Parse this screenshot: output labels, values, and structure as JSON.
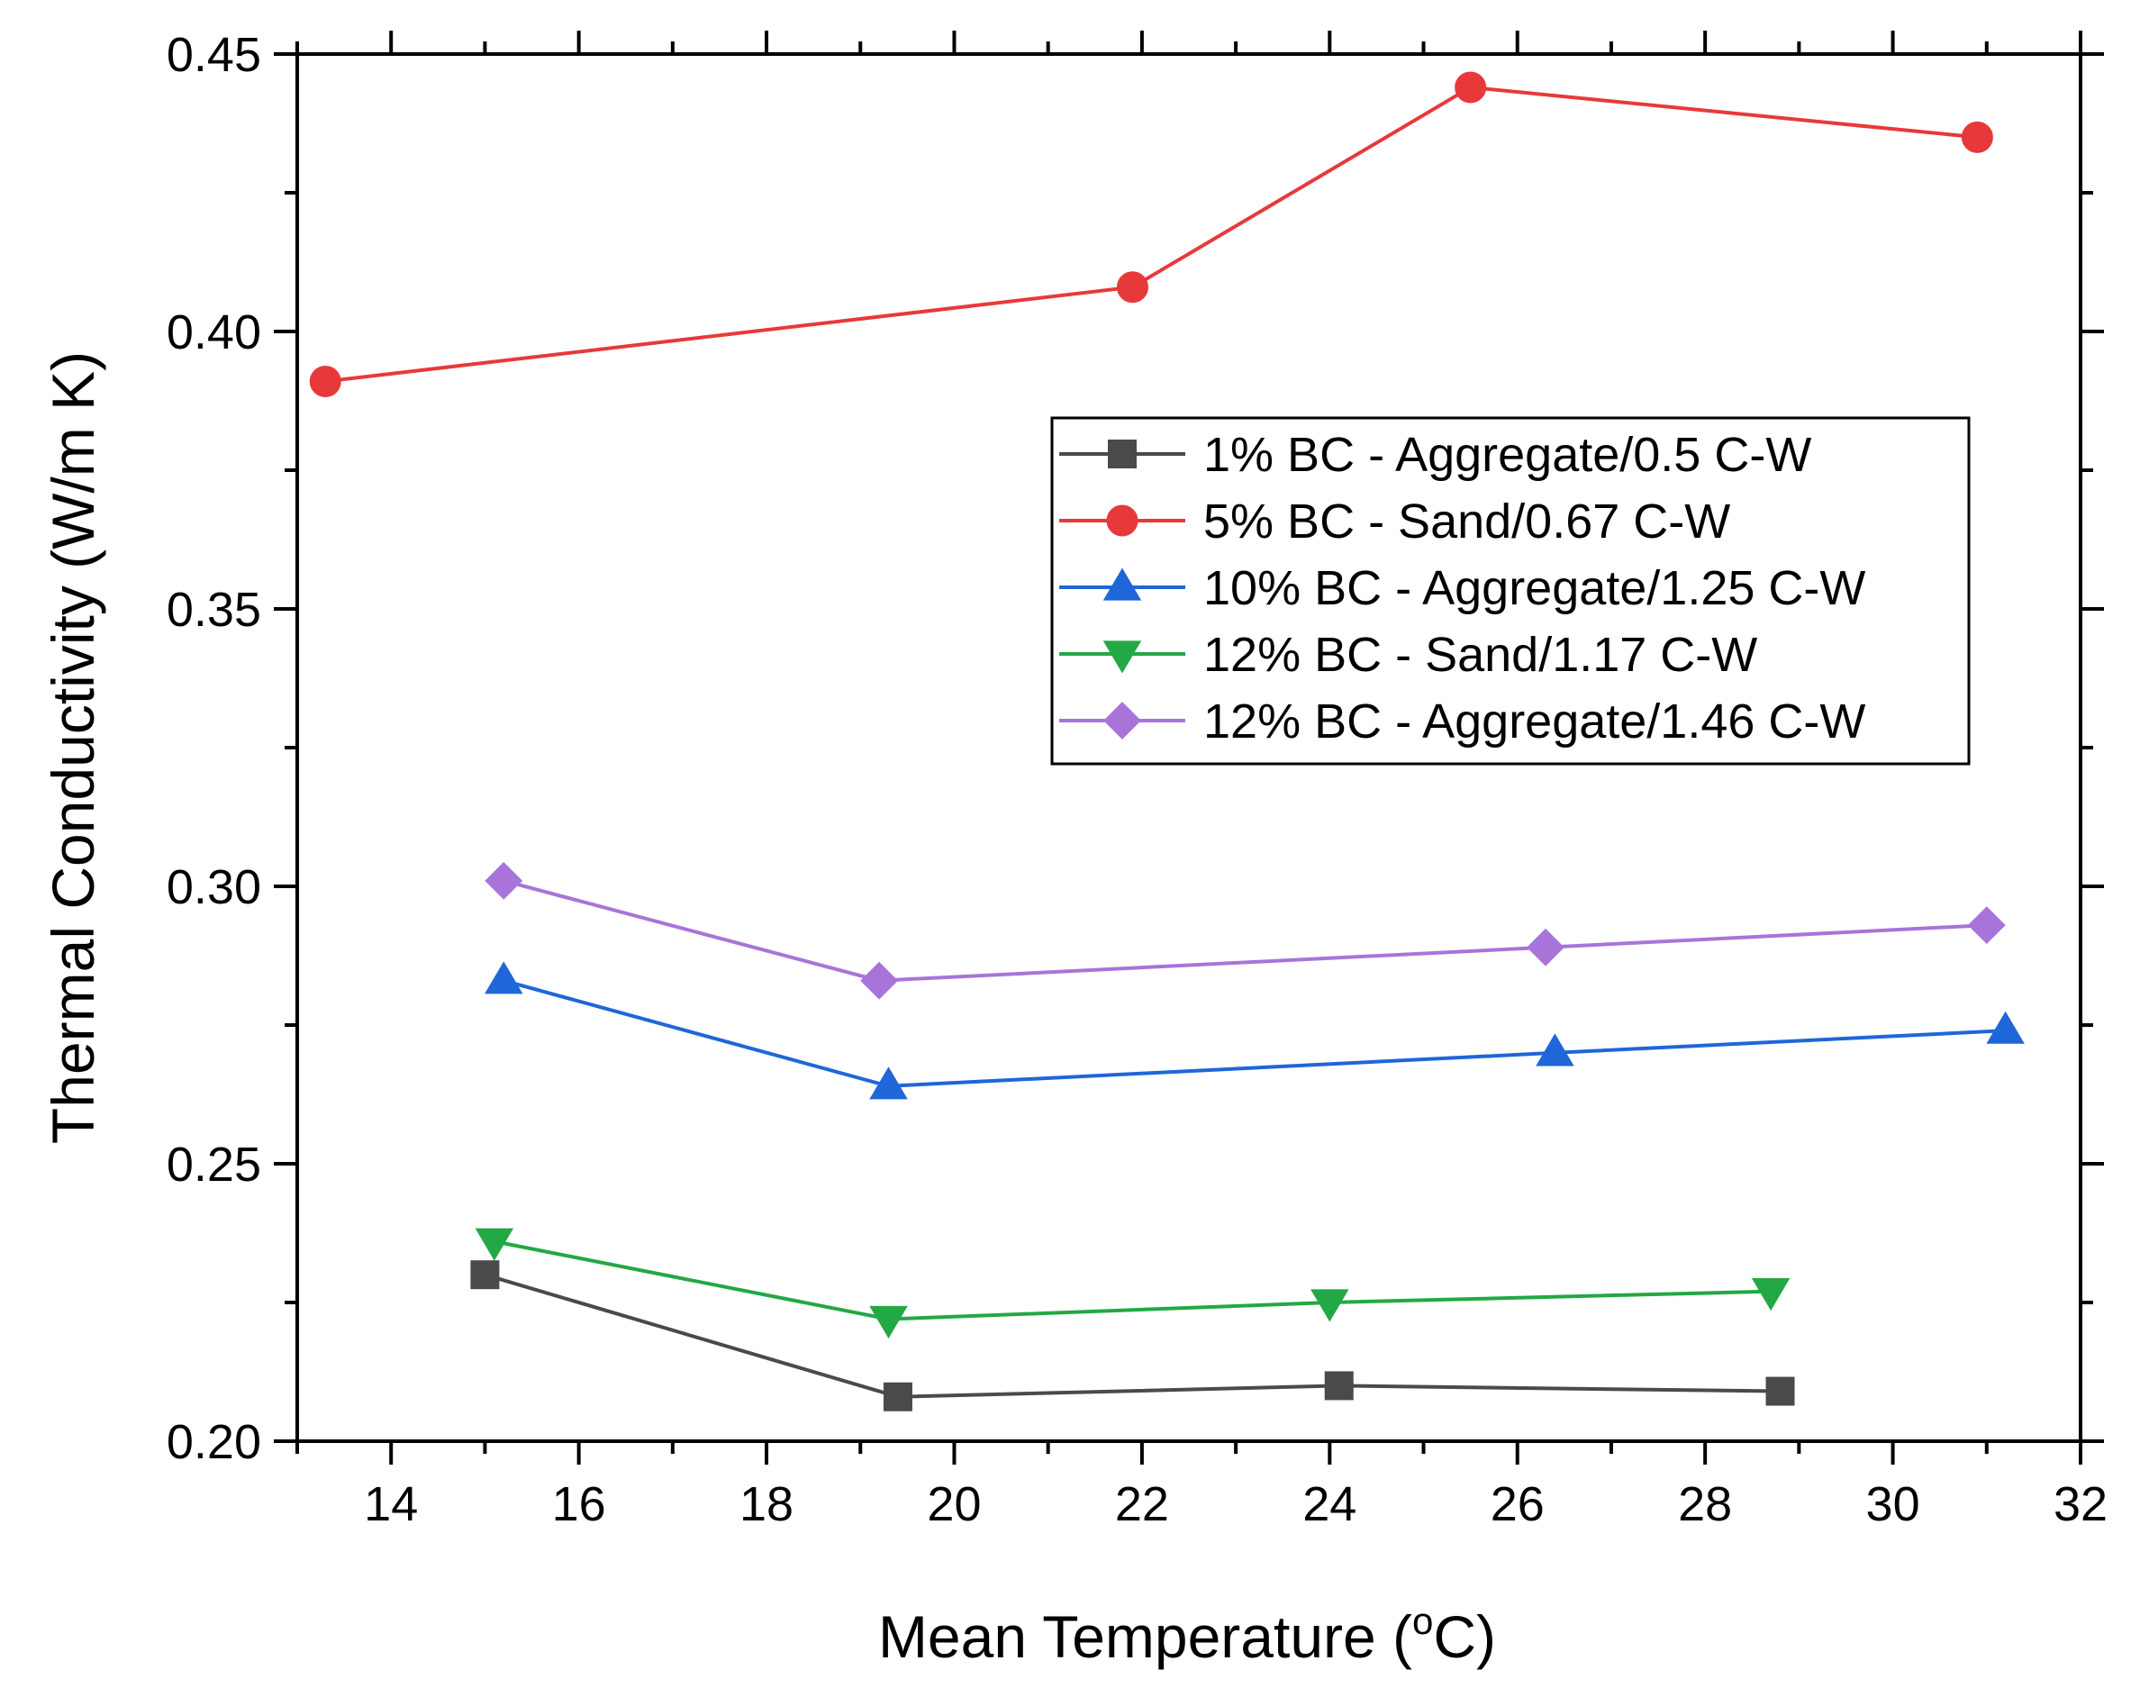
{
  "chart_data": {
    "type": "line",
    "xlabel": "Mean Temperature (",
    "xlabel_sup": "o",
    "xlabel_tail": "C)",
    "ylabel": "Thermal Conductivity (W/m K)",
    "xlim": [
      13,
      32
    ],
    "ylim": [
      0.2,
      0.45
    ],
    "x_ticks": [
      14,
      16,
      18,
      20,
      22,
      24,
      26,
      28,
      30,
      32
    ],
    "y_ticks": [
      0.2,
      0.25,
      0.3,
      0.35,
      0.4,
      0.45
    ],
    "x_tick_labels": [
      "14",
      "16",
      "18",
      "20",
      "22",
      "24",
      "26",
      "28",
      "30",
      "32"
    ],
    "y_tick_labels": [
      "0.20",
      "0.25",
      "0.30",
      "0.35",
      "0.40",
      "0.45"
    ],
    "grid": false,
    "legend_position": "upper-right",
    "series": [
      {
        "name": "1% BC - Aggregate/0.5 C-W",
        "marker": "square",
        "color": "#4a4a4a",
        "points": [
          [
            15.0,
            0.23
          ],
          [
            19.4,
            0.208
          ],
          [
            24.1,
            0.21
          ],
          [
            28.8,
            0.209
          ]
        ]
      },
      {
        "name": "5% BC - Sand/0.67 C-W",
        "marker": "circle",
        "color": "#e8393a",
        "points": [
          [
            13.3,
            0.391
          ],
          [
            21.9,
            0.408
          ],
          [
            25.5,
            0.444
          ],
          [
            30.9,
            0.435
          ]
        ]
      },
      {
        "name": "10% BC - Aggregate/1.25 C-W",
        "marker": "triangle-up",
        "color": "#1f66d9",
        "points": [
          [
            15.2,
            0.283
          ],
          [
            19.3,
            0.264
          ],
          [
            26.4,
            0.27
          ],
          [
            31.2,
            0.274
          ]
        ]
      },
      {
        "name": "12% BC - Sand/1.17 C-W",
        "marker": "triangle-down",
        "color": "#22a845",
        "points": [
          [
            15.1,
            0.236
          ],
          [
            19.3,
            0.222
          ],
          [
            24.0,
            0.225
          ],
          [
            28.7,
            0.227
          ]
        ]
      },
      {
        "name": "12% BC - Aggregate/1.46 C-W",
        "marker": "diamond",
        "color": "#a874d9",
        "points": [
          [
            15.2,
            0.301
          ],
          [
            19.2,
            0.283
          ],
          [
            26.3,
            0.289
          ],
          [
            31.0,
            0.293
          ]
        ]
      }
    ]
  }
}
